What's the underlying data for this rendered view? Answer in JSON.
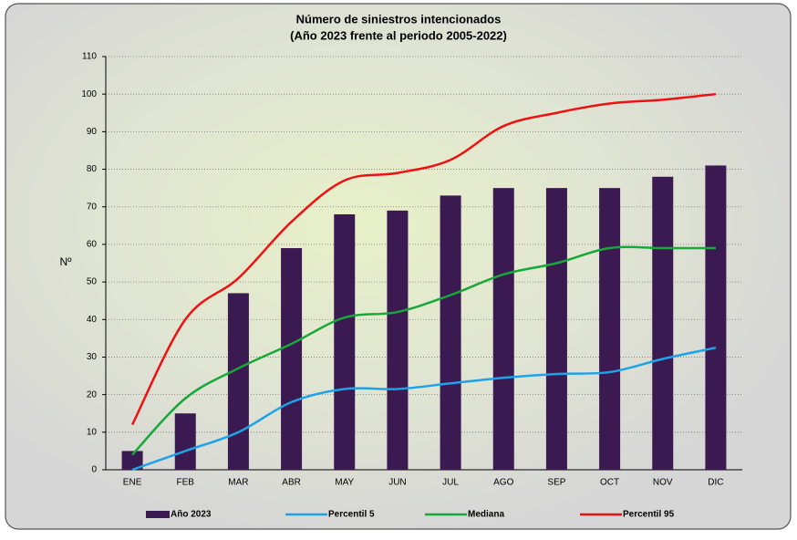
{
  "chart_data": {
    "type": "bar_line",
    "title": "Número de siniestros intencionados",
    "subtitle": "(Año 2023 frente al periodo 2005-2022)",
    "ylabel": "Nº",
    "categories": [
      "ENE",
      "FEB",
      "MAR",
      "ABR",
      "MAY",
      "JUN",
      "JUL",
      "AGO",
      "SEP",
      "OCT",
      "NOV",
      "DIC"
    ],
    "series": [
      {
        "name": "Año 2023",
        "type": "bar",
        "color": "#3b1a52",
        "values": [
          5,
          15,
          47,
          59,
          68,
          69,
          73,
          75,
          75,
          75,
          78,
          81
        ]
      },
      {
        "name": "Percentil 5",
        "type": "line",
        "color": "#1fa3e8",
        "values": [
          0,
          5,
          10,
          18,
          21.5,
          21.5,
          23,
          24.5,
          25.5,
          26,
          29.5,
          32.5
        ]
      },
      {
        "name": "Mediana",
        "type": "line",
        "color": "#18a83a",
        "values": [
          4,
          19,
          27,
          33.5,
          40.5,
          42,
          46.5,
          52,
          55,
          59,
          59,
          59
        ]
      },
      {
        "name": "Percentil 95",
        "type": "line",
        "color": "#ee1111",
        "values": [
          12,
          40,
          51,
          66,
          77,
          79,
          82.5,
          91.5,
          95,
          97.5,
          98.5,
          100
        ]
      }
    ],
    "ylim": [
      0,
      110
    ],
    "yticks": [
      0,
      10,
      20,
      30,
      40,
      50,
      60,
      70,
      80,
      90,
      100,
      110
    ],
    "grid": true
  }
}
